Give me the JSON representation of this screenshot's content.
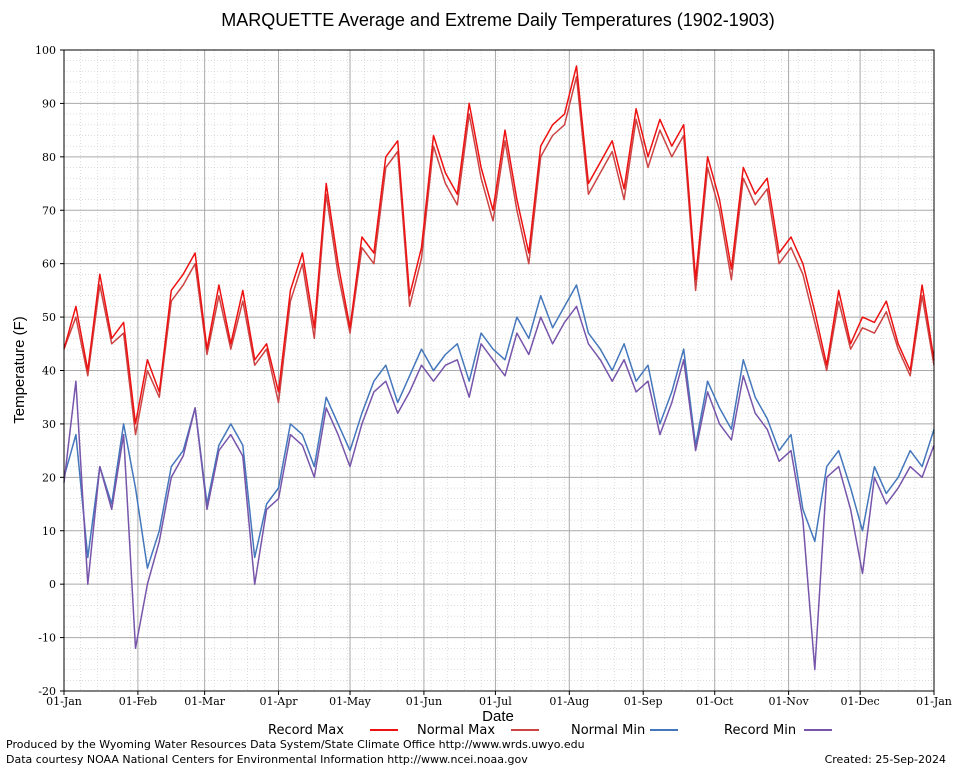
{
  "chart_data": {
    "type": "line",
    "title": "MARQUETTE Average and Extreme Daily Temperatures (1902-1903)",
    "xlabel": "Date",
    "ylabel": "Temperature (F)",
    "ylim": [
      -20,
      100
    ],
    "y_ticks": [
      "-20",
      "-10",
      "0",
      "10",
      "20",
      "30",
      "40",
      "50",
      "60",
      "70",
      "80",
      "90",
      "100"
    ],
    "x_ticks": [
      "01-Jan",
      "01-Feb",
      "01-Mar",
      "01-Apr",
      "01-May",
      "01-Jun",
      "01-Jul",
      "01-Aug",
      "01-Sep",
      "01-Oct",
      "01-Nov",
      "01-Dec",
      "01-Jan"
    ],
    "x_tick_days": [
      0,
      31,
      59,
      90,
      120,
      151,
      181,
      212,
      243,
      273,
      304,
      334,
      365
    ],
    "grid": true,
    "legend_position": "bottom",
    "series": [
      {
        "name": "Record Max",
        "color": "#ee1111",
        "x_days": [
          0,
          5,
          10,
          15,
          20,
          25,
          30,
          35,
          40,
          45,
          50,
          55,
          60,
          65,
          70,
          75,
          80,
          85,
          90,
          95,
          100,
          105,
          110,
          115,
          120,
          125,
          130,
          135,
          140,
          145,
          150,
          155,
          160,
          165,
          170,
          175,
          180,
          185,
          190,
          195,
          200,
          205,
          210,
          215,
          220,
          225,
          230,
          235,
          240,
          245,
          250,
          255,
          260,
          265,
          270,
          275,
          280,
          285,
          290,
          295,
          300,
          305,
          310,
          315,
          320,
          325,
          330,
          335,
          340,
          345,
          350,
          355,
          360,
          365
        ],
        "values": [
          44,
          52,
          40,
          58,
          46,
          49,
          30,
          42,
          36,
          55,
          58,
          62,
          44,
          56,
          45,
          55,
          42,
          45,
          36,
          55,
          62,
          48,
          75,
          60,
          48,
          65,
          62,
          80,
          83,
          54,
          63,
          84,
          77,
          73,
          90,
          78,
          70,
          85,
          72,
          62,
          82,
          86,
          88,
          97,
          75,
          79,
          83,
          74,
          89,
          80,
          87,
          82,
          86,
          57,
          80,
          72,
          59,
          78,
          73,
          76,
          62,
          65,
          60,
          51,
          41,
          55,
          45,
          50,
          49,
          53,
          45,
          40,
          56,
          42
        ]
      },
      {
        "name": "Normal Max",
        "color": "#cc4444",
        "x_days": [
          0,
          5,
          10,
          15,
          20,
          25,
          30,
          35,
          40,
          45,
          50,
          55,
          60,
          65,
          70,
          75,
          80,
          85,
          90,
          95,
          100,
          105,
          110,
          115,
          120,
          125,
          130,
          135,
          140,
          145,
          150,
          155,
          160,
          165,
          170,
          175,
          180,
          185,
          190,
          195,
          200,
          205,
          210,
          215,
          220,
          225,
          230,
          235,
          240,
          245,
          250,
          255,
          260,
          265,
          270,
          275,
          280,
          285,
          290,
          295,
          300,
          305,
          310,
          315,
          320,
          325,
          330,
          335,
          340,
          345,
          350,
          355,
          360,
          365
        ],
        "values": [
          44,
          50,
          39,
          56,
          45,
          47,
          28,
          40,
          35,
          53,
          56,
          60,
          43,
          54,
          44,
          53,
          41,
          44,
          34,
          53,
          60,
          46,
          73,
          58,
          47,
          63,
          60,
          78,
          81,
          52,
          61,
          82,
          75,
          71,
          88,
          76,
          68,
          83,
          70,
          60,
          80,
          84,
          86,
          95,
          73,
          77,
          81,
          72,
          87,
          78,
          85,
          80,
          84,
          55,
          78,
          70,
          57,
          76,
          71,
          74,
          60,
          63,
          58,
          49,
          40,
          53,
          44,
          48,
          47,
          51,
          44,
          39,
          54,
          41
        ]
      },
      {
        "name": "Normal Min",
        "color": "#4477bb",
        "x_days": [
          0,
          5,
          10,
          15,
          20,
          25,
          30,
          35,
          40,
          45,
          50,
          55,
          60,
          65,
          70,
          75,
          80,
          85,
          90,
          95,
          100,
          105,
          110,
          115,
          120,
          125,
          130,
          135,
          140,
          145,
          150,
          155,
          160,
          165,
          170,
          175,
          180,
          185,
          190,
          195,
          200,
          205,
          210,
          215,
          220,
          225,
          230,
          235,
          240,
          245,
          250,
          255,
          260,
          265,
          270,
          275,
          280,
          285,
          290,
          295,
          300,
          305,
          310,
          315,
          320,
          325,
          330,
          335,
          340,
          345,
          350,
          355,
          360,
          365
        ],
        "values": [
          20,
          28,
          5,
          22,
          15,
          30,
          18,
          3,
          10,
          22,
          25,
          33,
          15,
          26,
          30,
          26,
          5,
          15,
          18,
          30,
          28,
          22,
          35,
          30,
          25,
          32,
          38,
          41,
          34,
          39,
          44,
          40,
          43,
          45,
          38,
          47,
          44,
          42,
          50,
          46,
          54,
          48,
          52,
          56,
          47,
          44,
          40,
          45,
          38,
          41,
          30,
          36,
          44,
          26,
          38,
          33,
          29,
          42,
          35,
          31,
          25,
          28,
          14,
          8,
          22,
          25,
          18,
          10,
          22,
          17,
          20,
          25,
          22,
          29
        ]
      },
      {
        "name": "Record Min",
        "color": "#7755aa",
        "x_days": [
          0,
          5,
          10,
          15,
          20,
          25,
          30,
          35,
          40,
          45,
          50,
          55,
          60,
          65,
          70,
          75,
          80,
          85,
          90,
          95,
          100,
          105,
          110,
          115,
          120,
          125,
          130,
          135,
          140,
          145,
          150,
          155,
          160,
          165,
          170,
          175,
          180,
          185,
          190,
          195,
          200,
          205,
          210,
          215,
          220,
          225,
          230,
          235,
          240,
          245,
          250,
          255,
          260,
          265,
          270,
          275,
          280,
          285,
          290,
          295,
          300,
          305,
          310,
          315,
          320,
          325,
          330,
          335,
          340,
          345,
          350,
          355,
          360,
          365
        ],
        "values": [
          19,
          38,
          0,
          22,
          14,
          28,
          -12,
          0,
          8,
          20,
          24,
          33,
          14,
          25,
          28,
          24,
          0,
          14,
          16,
          28,
          26,
          20,
          33,
          28,
          22,
          30,
          36,
          38,
          32,
          36,
          41,
          38,
          41,
          42,
          35,
          45,
          42,
          39,
          47,
          43,
          50,
          45,
          49,
          52,
          45,
          42,
          38,
          42,
          36,
          38,
          28,
          34,
          42,
          25,
          36,
          30,
          27,
          39,
          32,
          29,
          23,
          25,
          12,
          -16,
          20,
          22,
          14,
          2,
          20,
          15,
          18,
          22,
          20,
          26
        ]
      }
    ]
  },
  "footer": {
    "credit_line_1": "Produced by the Wyoming Water Resources Data System/State Climate Office http://www.wrds.uwyo.edu",
    "credit_line_2": "Data courtesy NOAA National Centers for Environmental Information http://www.ncei.noaa.gov",
    "created": "Created:  25-Sep-2024"
  }
}
